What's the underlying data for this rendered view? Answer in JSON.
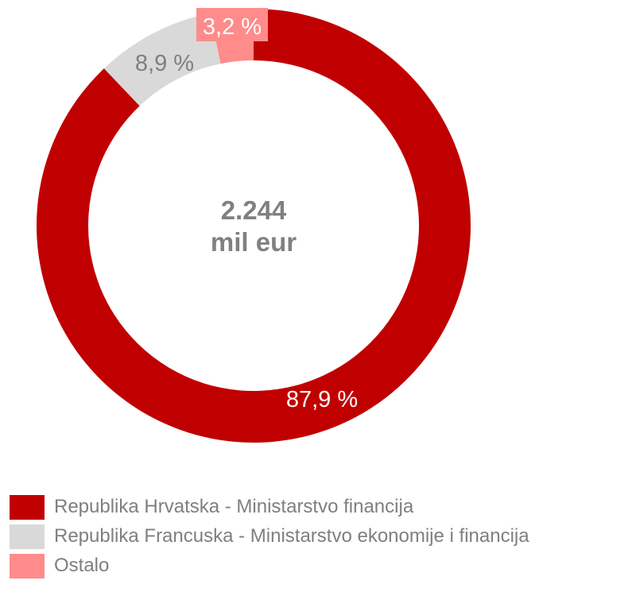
{
  "chart_data": {
    "type": "pie",
    "variant": "donut",
    "center_label": {
      "line1": "2.244",
      "line2": "mil eur"
    },
    "slices": [
      {
        "name": "Republika Hrvatska - Ministarstvo financija",
        "value": 87.9,
        "label": "87,9 %",
        "color": "#c00000",
        "label_color": "#ffffff"
      },
      {
        "name": "Republika Francuska - Ministarstvo ekonomije i financija",
        "value": 8.9,
        "label": "8,9 %",
        "color": "#d9d9d9",
        "label_color": "#7f7f7f"
      },
      {
        "name": "Ostalo",
        "value": 3.2,
        "label": "3,2 %",
        "color": "#ff8b8b",
        "label_color": "#ffffff"
      }
    ],
    "legend": {
      "position": "bottom-left"
    }
  }
}
